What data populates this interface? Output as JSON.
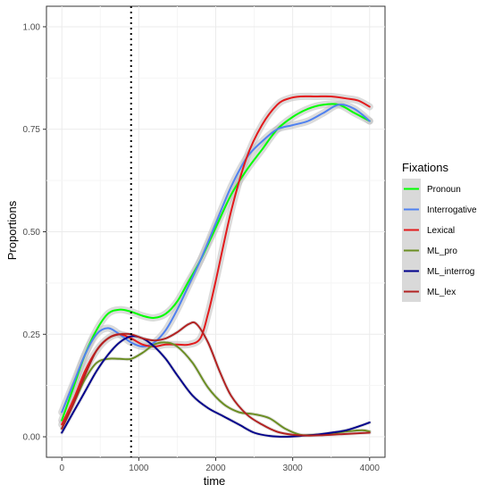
{
  "chart_data": {
    "type": "line",
    "xlabel": "time",
    "ylabel": "Proportions",
    "xlim": [
      -200,
      4200
    ],
    "ylim": [
      -0.05,
      1.05
    ],
    "x_ticks": [
      0,
      1000,
      2000,
      3000,
      4000
    ],
    "x_tick_labels": [
      "0",
      "1000",
      "2000",
      "3000",
      "4000"
    ],
    "y_ticks": [
      0,
      0.25,
      0.5,
      0.75,
      1.0
    ],
    "y_tick_labels": [
      "0.00",
      "0.25",
      "0.50",
      "0.75",
      "1.00"
    ],
    "grid": true,
    "vline": 900,
    "legend": {
      "title": "Fixations",
      "position": "right"
    },
    "series": [
      {
        "name": "Pronoun",
        "color": "#00ff00",
        "band": true,
        "x": [
          0,
          150,
          300,
          450,
          600,
          750,
          900,
          1050,
          1200,
          1350,
          1500,
          1650,
          1800,
          2000,
          2200,
          2400,
          2600,
          2800,
          3000,
          3200,
          3400,
          3600,
          3800,
          4000
        ],
        "y": [
          0.04,
          0.12,
          0.2,
          0.26,
          0.3,
          0.31,
          0.305,
          0.295,
          0.29,
          0.3,
          0.33,
          0.38,
          0.43,
          0.51,
          0.59,
          0.65,
          0.7,
          0.75,
          0.78,
          0.8,
          0.81,
          0.81,
          0.79,
          0.77
        ]
      },
      {
        "name": "Interrogative",
        "color": "#4f81f0",
        "band": true,
        "x": [
          0,
          150,
          300,
          450,
          600,
          750,
          900,
          1050,
          1200,
          1350,
          1500,
          1650,
          1800,
          2000,
          2200,
          2400,
          2600,
          2800,
          3000,
          3200,
          3400,
          3600,
          3800,
          4000
        ],
        "y": [
          0.06,
          0.13,
          0.2,
          0.25,
          0.265,
          0.25,
          0.23,
          0.22,
          0.23,
          0.26,
          0.31,
          0.37,
          0.43,
          0.52,
          0.61,
          0.68,
          0.72,
          0.75,
          0.76,
          0.77,
          0.79,
          0.81,
          0.8,
          0.77
        ]
      },
      {
        "name": "Lexical",
        "color": "#e31a1c",
        "band": true,
        "x": [
          0,
          150,
          300,
          450,
          600,
          750,
          900,
          1050,
          1200,
          1350,
          1500,
          1650,
          1800,
          1900,
          2000,
          2200,
          2400,
          2600,
          2800,
          2950,
          3100,
          3300,
          3500,
          3700,
          3850,
          4000
        ],
        "y": [
          0.03,
          0.09,
          0.16,
          0.21,
          0.24,
          0.25,
          0.24,
          0.225,
          0.22,
          0.225,
          0.225,
          0.225,
          0.24,
          0.3,
          0.38,
          0.55,
          0.68,
          0.76,
          0.81,
          0.825,
          0.83,
          0.83,
          0.83,
          0.825,
          0.82,
          0.805
        ]
      },
      {
        "name": "ML_pro",
        "color": "#6b8e23",
        "band": false,
        "x": [
          0,
          150,
          300,
          450,
          600,
          750,
          900,
          1050,
          1200,
          1350,
          1500,
          1700,
          1900,
          2100,
          2300,
          2500,
          2700,
          2900,
          3100,
          3300,
          3500,
          3700,
          3900,
          4000
        ],
        "y": [
          0.02,
          0.08,
          0.14,
          0.18,
          0.19,
          0.19,
          0.19,
          0.205,
          0.225,
          0.23,
          0.22,
          0.18,
          0.12,
          0.08,
          0.06,
          0.055,
          0.045,
          0.02,
          0.005,
          0.005,
          0.008,
          0.013,
          0.016,
          0.013
        ]
      },
      {
        "name": "ML_interrog",
        "color": "#00008b",
        "band": false,
        "x": [
          0,
          150,
          300,
          450,
          600,
          750,
          900,
          1050,
          1200,
          1350,
          1500,
          1700,
          1900,
          2100,
          2300,
          2500,
          2700,
          2900,
          3100,
          3300,
          3500,
          3700,
          3900,
          4000
        ],
        "y": [
          0.01,
          0.06,
          0.11,
          0.16,
          0.2,
          0.23,
          0.245,
          0.24,
          0.22,
          0.19,
          0.15,
          0.1,
          0.07,
          0.05,
          0.03,
          0.01,
          0.002,
          0.0,
          0.002,
          0.005,
          0.01,
          0.016,
          0.028,
          0.035
        ]
      },
      {
        "name": "ML_lex",
        "color": "#b22222",
        "band": false,
        "x": [
          0,
          150,
          300,
          450,
          600,
          750,
          900,
          1050,
          1200,
          1350,
          1500,
          1650,
          1750,
          1900,
          2050,
          2200,
          2400,
          2600,
          2800,
          3000,
          3200,
          3400,
          3600,
          3800,
          4000
        ],
        "y": [
          0.02,
          0.08,
          0.15,
          0.21,
          0.24,
          0.25,
          0.25,
          0.24,
          0.235,
          0.24,
          0.255,
          0.275,
          0.275,
          0.23,
          0.16,
          0.1,
          0.055,
          0.03,
          0.012,
          0.005,
          0.003,
          0.004,
          0.006,
          0.008,
          0.01
        ]
      }
    ]
  }
}
